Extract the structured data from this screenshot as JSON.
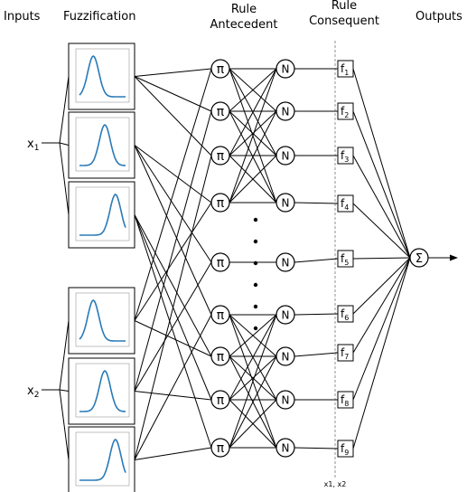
{
  "headers": {
    "inputs": "Inputs",
    "fuzzification": "Fuzzification",
    "rule_antecedent": [
      "Rule",
      "Antecedent"
    ],
    "rule_consequent": [
      "Rule",
      "Consequent"
    ],
    "outputs": "Outputs"
  },
  "inputs": [
    {
      "name": "x",
      "sub": "1"
    },
    {
      "name": "x",
      "sub": "2"
    }
  ],
  "membership_functions": [
    {
      "input": "x1",
      "shape": "low"
    },
    {
      "input": "x1",
      "shape": "mid"
    },
    {
      "input": "x1",
      "shape": "high"
    },
    {
      "input": "x2",
      "shape": "low"
    },
    {
      "input": "x2",
      "shape": "mid"
    },
    {
      "input": "x2",
      "shape": "high"
    }
  ],
  "product_symbol": "π",
  "normalize_symbol": "N",
  "sum_symbol": "Σ",
  "consequents": [
    {
      "name": "f",
      "sub": "1"
    },
    {
      "name": "f",
      "sub": "2"
    },
    {
      "name": "f",
      "sub": "3"
    },
    {
      "name": "f",
      "sub": "4"
    },
    {
      "name": "f",
      "sub": "5"
    },
    {
      "name": "f",
      "sub": "6"
    },
    {
      "name": "f",
      "sub": "7"
    },
    {
      "name": "f",
      "sub": "8"
    },
    {
      "name": "f",
      "sub": "9"
    }
  ],
  "consequent_inputs_label": "x1, x2",
  "ellipsis_dots": 6
}
